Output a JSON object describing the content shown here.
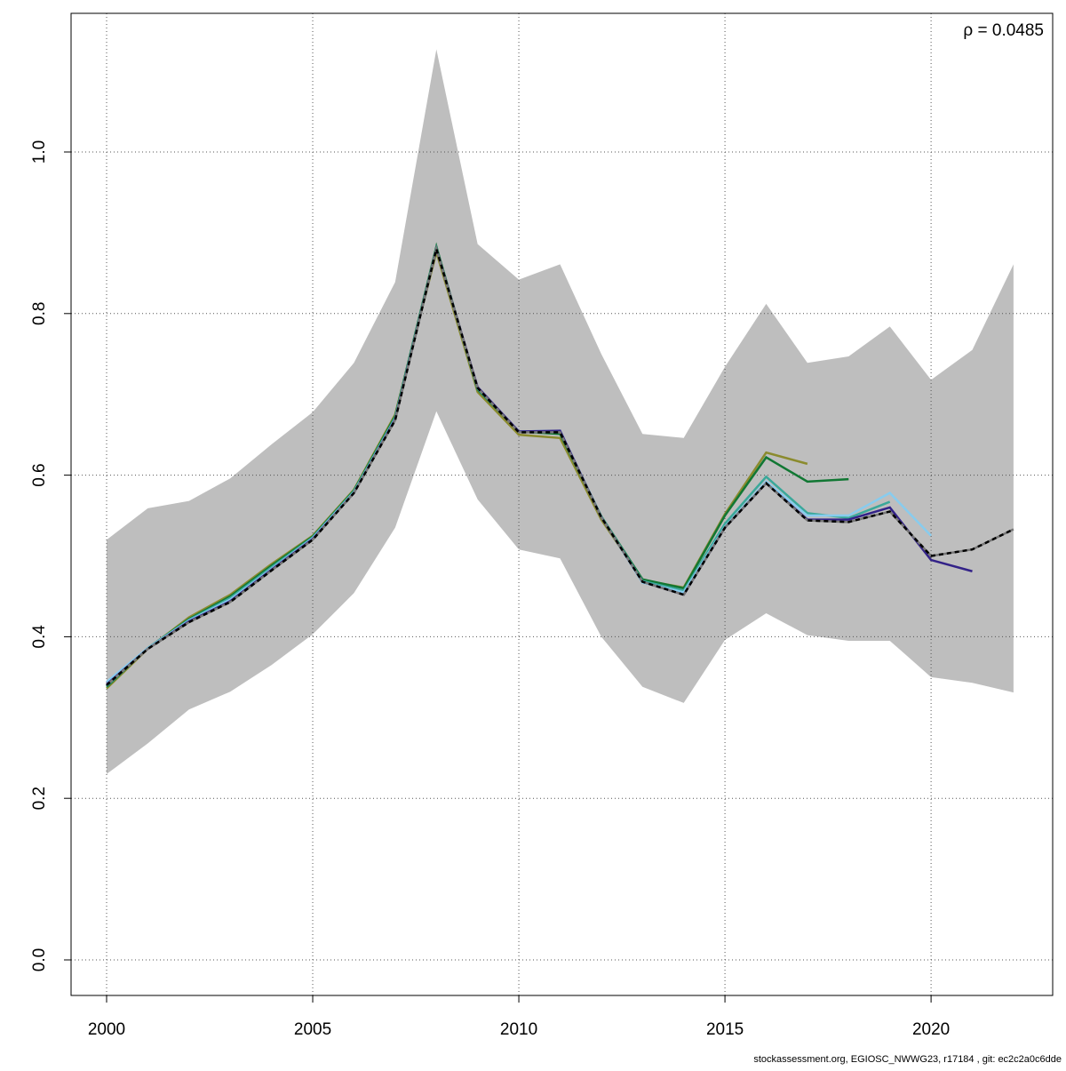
{
  "chart_data": {
    "type": "line",
    "annotation": "ρ = 0.0485",
    "footer": "stockassessment.org, EGIOSC_NWWG23, r17184 , git: ec2c2a0c6dde",
    "x": [
      2000,
      2001,
      2002,
      2003,
      2004,
      2005,
      2006,
      2007,
      2008,
      2009,
      2010,
      2011,
      2012,
      2013,
      2014,
      2015,
      2016,
      2017,
      2018,
      2019,
      2020,
      2021,
      2022
    ],
    "xlim": [
      1999.138,
      2022.95
    ],
    "xticks": [
      2000,
      2005,
      2010,
      2015,
      2020
    ],
    "ylim": [
      -0.044,
      1.1716
    ],
    "yticks": [
      {
        "value": 0,
        "label": "0.0"
      },
      0.2,
      0.4,
      0.6,
      0.8,
      {
        "value": 1,
        "label": "1.0"
      }
    ],
    "grid": true,
    "band": {
      "color": "#bebebe",
      "upper": [
        0.52,
        0.559,
        0.568,
        0.596,
        0.638,
        0.678,
        0.739,
        0.839,
        1.127,
        0.886,
        0.842,
        0.861,
        0.75,
        0.651,
        0.646,
        0.734,
        0.812,
        0.739,
        0.747,
        0.784,
        0.718,
        0.755,
        0.861
      ],
      "lower": [
        0.23,
        0.268,
        0.31,
        0.332,
        0.365,
        0.403,
        0.454,
        0.535,
        0.679,
        0.57,
        0.508,
        0.497,
        0.4,
        0.338,
        0.318,
        0.396,
        0.429,
        0.402,
        0.395,
        0.395,
        0.35,
        0.343,
        0.331
      ]
    },
    "series": [
      {
        "color": "#8b8b2e",
        "values": [
          0.336,
          0.385,
          0.424,
          0.452,
          0.49,
          0.525,
          0.582,
          0.675,
          0.876,
          0.703,
          0.65,
          0.646,
          0.545,
          0.47,
          0.461,
          0.552,
          0.628,
          0.614,
          null,
          null,
          null,
          null,
          null
        ]
      },
      {
        "color": "#117733",
        "values": [
          0.338,
          0.386,
          0.422,
          0.45,
          0.488,
          0.524,
          0.581,
          0.673,
          0.883,
          0.706,
          0.654,
          0.651,
          0.549,
          0.471,
          0.46,
          0.55,
          0.622,
          0.592,
          0.595,
          null,
          null,
          null,
          null
        ]
      },
      {
        "color": "#3aa89a",
        "values": [
          0.339,
          0.386,
          0.421,
          0.448,
          0.486,
          0.523,
          0.58,
          0.671,
          0.881,
          0.707,
          0.654,
          0.654,
          0.549,
          0.469,
          0.457,
          0.54,
          0.598,
          0.553,
          0.547,
          0.567,
          null,
          null,
          null
        ]
      },
      {
        "color": "#88ccee",
        "values": [
          0.344,
          0.386,
          0.42,
          0.446,
          0.484,
          0.522,
          0.579,
          0.67,
          0.88,
          0.708,
          0.654,
          0.655,
          0.548,
          0.467,
          0.455,
          0.536,
          0.592,
          0.55,
          0.55,
          0.578,
          0.525,
          null,
          null
        ]
      },
      {
        "color": "#332288",
        "values": [
          0.341,
          0.385,
          0.419,
          0.444,
          0.483,
          0.521,
          0.578,
          0.669,
          0.88,
          0.709,
          0.654,
          0.655,
          0.548,
          0.468,
          0.452,
          0.535,
          0.59,
          0.545,
          0.545,
          0.56,
          0.495,
          0.481,
          null
        ]
      },
      {
        "color": "#000000",
        "dash": true,
        "values": [
          0.34,
          0.385,
          0.418,
          0.443,
          0.482,
          0.52,
          0.578,
          0.668,
          0.88,
          0.708,
          0.653,
          0.653,
          0.548,
          0.468,
          0.452,
          0.535,
          0.59,
          0.544,
          0.542,
          0.555,
          0.5,
          0.508,
          0.533
        ]
      }
    ]
  }
}
